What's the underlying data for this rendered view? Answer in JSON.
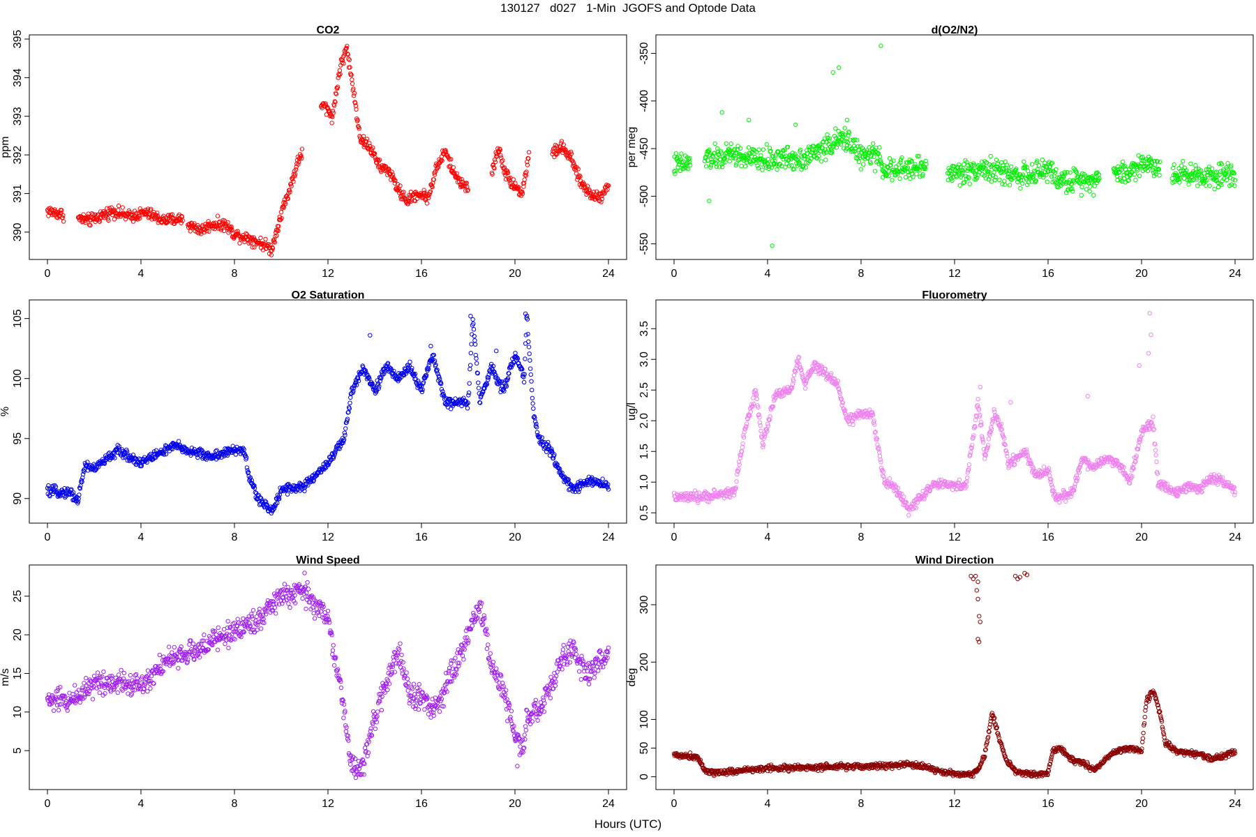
{
  "figure": {
    "title": "130127   d027   1-Min  JGOFS and Optode Data",
    "xlabel": "Hours (UTC)"
  },
  "chart_data": [
    {
      "type": "scatter",
      "title": "CO2",
      "ylabel": "ppm",
      "color": "#ff0000",
      "xlim": [
        0,
        24
      ],
      "ylim": [
        389.4,
        395.0
      ],
      "xticks": [
        0,
        4,
        8,
        12,
        16,
        20,
        24
      ],
      "yticks": [
        390,
        391,
        392,
        393,
        394,
        395
      ],
      "gaps": [
        [
          0.7,
          1.3
        ],
        [
          5.8,
          6.0
        ],
        [
          10.9,
          11.7
        ],
        [
          18.0,
          19.0
        ],
        [
          20.6,
          21.6
        ]
      ],
      "knots": [
        [
          0,
          390.55
        ],
        [
          0.7,
          390.45
        ],
        [
          1.3,
          390.35
        ],
        [
          1.8,
          390.3
        ],
        [
          2.8,
          390.55
        ],
        [
          3.5,
          390.4
        ],
        [
          4.2,
          390.5
        ],
        [
          5,
          390.3
        ],
        [
          5.8,
          390.35
        ],
        [
          6,
          390.2
        ],
        [
          6.6,
          390.05
        ],
        [
          7,
          390.2
        ],
        [
          7.6,
          390.2
        ],
        [
          8,
          389.95
        ],
        [
          8.6,
          389.85
        ],
        [
          9.2,
          389.7
        ],
        [
          9.6,
          389.55
        ],
        [
          10,
          390.5
        ],
        [
          10.3,
          391.0
        ],
        [
          10.7,
          391.8
        ],
        [
          11.8,
          393.3
        ],
        [
          12.2,
          393.0
        ],
        [
          12.5,
          394.2
        ],
        [
          12.8,
          394.8
        ],
        [
          13,
          394.0
        ],
        [
          13.4,
          392.4
        ],
        [
          13.8,
          392.2
        ],
        [
          14.2,
          391.7
        ],
        [
          14.6,
          391.6
        ],
        [
          15,
          391.1
        ],
        [
          15.4,
          390.8
        ],
        [
          15.8,
          391.0
        ],
        [
          16.3,
          390.9
        ],
        [
          16.6,
          391.6
        ],
        [
          17,
          392.1
        ],
        [
          17.4,
          391.5
        ],
        [
          17.7,
          391.3
        ],
        [
          18,
          391.1
        ],
        [
          19,
          391.5
        ],
        [
          19.3,
          392.2
        ],
        [
          19.6,
          391.5
        ],
        [
          20,
          391.2
        ],
        [
          20.3,
          391.0
        ],
        [
          20.6,
          392.0
        ],
        [
          21.6,
          392.05
        ],
        [
          22,
          392.2
        ],
        [
          22.4,
          391.9
        ],
        [
          22.8,
          391.3
        ],
        [
          23.2,
          391.0
        ],
        [
          23.6,
          390.9
        ],
        [
          24,
          391.2
        ]
      ],
      "noise": 0.15
    },
    {
      "type": "scatter",
      "title": "d(O2/N2)",
      "ylabel": "per meg",
      "color": "#00ee00",
      "xlim": [
        0,
        24
      ],
      "ylim": [
        -562,
        -335
      ],
      "xticks": [
        0,
        4,
        8,
        12,
        16,
        20,
        24
      ],
      "yticks": [
        -550,
        -500,
        -450,
        -400,
        -350
      ],
      "gaps": [
        [
          0.7,
          1.3
        ],
        [
          10.8,
          11.7
        ],
        [
          18.2,
          18.8
        ],
        [
          20.8,
          21.3
        ]
      ],
      "knots": [
        [
          0,
          -467
        ],
        [
          0.7,
          -466
        ],
        [
          1.3,
          -460
        ],
        [
          2,
          -460
        ],
        [
          2.5,
          -455
        ],
        [
          3,
          -460
        ],
        [
          4,
          -462
        ],
        [
          4.5,
          -460
        ],
        [
          5.5,
          -460
        ],
        [
          6,
          -455
        ],
        [
          6.5,
          -448
        ],
        [
          7,
          -442
        ],
        [
          7.5,
          -440
        ],
        [
          8,
          -460
        ],
        [
          8.5,
          -455
        ],
        [
          9,
          -470
        ],
        [
          9.5,
          -475
        ],
        [
          10,
          -470
        ],
        [
          10.8,
          -470
        ],
        [
          11.7,
          -475
        ],
        [
          12.5,
          -475
        ],
        [
          13,
          -470
        ],
        [
          14,
          -475
        ],
        [
          15,
          -478
        ],
        [
          15.5,
          -478
        ],
        [
          16,
          -470
        ],
        [
          16.5,
          -485
        ],
        [
          17.5,
          -482
        ],
        [
          18.2,
          -482
        ],
        [
          18.8,
          -475
        ],
        [
          19.5,
          -475
        ],
        [
          20,
          -465
        ],
        [
          20.8,
          -470
        ],
        [
          21.3,
          -475
        ],
        [
          22,
          -477
        ],
        [
          23,
          -478
        ],
        [
          24,
          -475
        ]
      ],
      "noise": 12,
      "extra_points": [
        [
          8.85,
          -342
        ],
        [
          7.05,
          -365
        ],
        [
          6.8,
          -370
        ],
        [
          4.2,
          -552
        ],
        [
          1.5,
          -505
        ],
        [
          2.05,
          -412
        ],
        [
          7.4,
          -420
        ],
        [
          5.2,
          -425
        ],
        [
          3.2,
          -420
        ]
      ]
    },
    {
      "type": "scatter",
      "title": "O2 Saturation",
      "ylabel": "%",
      "color": "#0000ee",
      "xlim": [
        0,
        24
      ],
      "ylim": [
        88.3,
        106.2
      ],
      "xticks": [
        0,
        4,
        8,
        12,
        16,
        20,
        24
      ],
      "yticks": [
        90,
        95,
        100,
        105
      ],
      "gaps": [],
      "knots": [
        [
          0,
          90.6
        ],
        [
          1,
          90.5
        ],
        [
          1.3,
          89.8
        ],
        [
          1.6,
          92.8
        ],
        [
          2,
          92.5
        ],
        [
          3,
          94
        ],
        [
          3.5,
          93.5
        ],
        [
          4,
          93
        ],
        [
          5,
          94
        ],
        [
          5.5,
          94.4
        ],
        [
          6,
          94
        ],
        [
          7,
          93.5
        ],
        [
          8,
          94
        ],
        [
          8.4,
          94.1
        ],
        [
          8.6,
          92
        ],
        [
          9,
          90
        ],
        [
          9.6,
          88.9
        ],
        [
          10,
          90.8
        ],
        [
          11,
          91
        ],
        [
          12,
          93
        ],
        [
          12.7,
          95
        ],
        [
          13,
          98.8
        ],
        [
          13.5,
          101
        ],
        [
          14,
          99
        ],
        [
          14.5,
          101
        ],
        [
          15,
          100
        ],
        [
          15.5,
          101
        ],
        [
          16,
          99
        ],
        [
          16.5,
          102
        ],
        [
          17,
          98
        ],
        [
          18,
          98
        ],
        [
          18.2,
          105
        ],
        [
          18.5,
          98
        ],
        [
          19,
          101
        ],
        [
          19.5,
          99
        ],
        [
          20,
          102
        ],
        [
          20.4,
          100
        ],
        [
          20.5,
          105.5
        ],
        [
          20.8,
          97
        ],
        [
          21,
          95
        ],
        [
          21.5,
          94
        ],
        [
          22,
          92
        ],
        [
          22.5,
          90.7
        ],
        [
          23,
          91.5
        ],
        [
          24,
          91.1
        ]
      ],
      "noise": 0.4,
      "extra_points": [
        [
          18.1,
          105.2
        ],
        [
          20.45,
          105.4
        ],
        [
          13.8,
          103.6
        ],
        [
          16.4,
          102.7
        ],
        [
          19.2,
          102.3
        ]
      ]
    },
    {
      "type": "scatter",
      "title": "Fluorometry",
      "ylabel": "ug/l",
      "color": "#ee82ee",
      "xlim": [
        0,
        24
      ],
      "ylim": [
        0.4,
        3.9
      ],
      "xticks": [
        0,
        4,
        8,
        12,
        16,
        20,
        24
      ],
      "yticks": [
        0.5,
        1.0,
        1.5,
        2.0,
        2.5,
        3.0,
        3.5
      ],
      "gaps": [],
      "knots": [
        [
          0,
          0.75
        ],
        [
          1,
          0.75
        ],
        [
          2,
          0.8
        ],
        [
          2.6,
          0.85
        ],
        [
          3,
          1.8
        ],
        [
          3.5,
          2.5
        ],
        [
          3.8,
          1.6
        ],
        [
          4.3,
          2.4
        ],
        [
          5,
          2.5
        ],
        [
          5.3,
          3.0
        ],
        [
          5.6,
          2.6
        ],
        [
          6,
          2.9
        ],
        [
          7,
          2.6
        ],
        [
          7.4,
          2.0
        ],
        [
          8,
          2.1
        ],
        [
          8.5,
          2.1
        ],
        [
          9,
          1.0
        ],
        [
          9.5,
          0.9
        ],
        [
          10,
          0.55
        ],
        [
          10.7,
          0.8
        ],
        [
          11,
          0.95
        ],
        [
          12.5,
          0.95
        ],
        [
          13,
          2.3
        ],
        [
          13.3,
          1.4
        ],
        [
          13.7,
          2.1
        ],
        [
          14,
          1.9
        ],
        [
          14.3,
          1.3
        ],
        [
          15,
          1.5
        ],
        [
          15.5,
          1.1
        ],
        [
          16,
          1.2
        ],
        [
          16.3,
          0.75
        ],
        [
          17,
          0.8
        ],
        [
          17.5,
          1.4
        ],
        [
          17.9,
          1.2
        ],
        [
          18.5,
          1.4
        ],
        [
          19,
          1.3
        ],
        [
          19.5,
          1.0
        ],
        [
          20,
          1.8
        ],
        [
          20.5,
          2.0
        ],
        [
          20.7,
          1.0
        ],
        [
          21.5,
          0.8
        ],
        [
          22,
          0.95
        ],
        [
          22.5,
          0.9
        ],
        [
          23,
          1.05
        ],
        [
          23.5,
          1.0
        ],
        [
          24,
          0.85
        ]
      ],
      "noise": 0.08,
      "extra_points": [
        [
          20.35,
          3.75
        ],
        [
          20.4,
          3.4
        ],
        [
          20.3,
          3.1
        ],
        [
          17.7,
          2.4
        ],
        [
          13.1,
          2.55
        ],
        [
          14.4,
          2.3
        ],
        [
          19.9,
          2.9
        ]
      ]
    },
    {
      "type": "scatter",
      "title": "Wind Speed",
      "ylabel": "m/s",
      "color": "#a020f0",
      "xlim": [
        0,
        24
      ],
      "ylim": [
        0.5,
        28.5
      ],
      "xticks": [
        0,
        4,
        8,
        12,
        16,
        20,
        24
      ],
      "yticks": [
        5,
        10,
        15,
        20,
        25
      ],
      "gaps": [],
      "knots": [
        [
          0,
          11.5
        ],
        [
          1,
          11.5
        ],
        [
          2,
          13.8
        ],
        [
          3,
          14
        ],
        [
          4,
          13.5
        ],
        [
          5,
          16.5
        ],
        [
          6,
          17.5
        ],
        [
          7,
          19
        ],
        [
          8,
          20.5
        ],
        [
          9,
          22
        ],
        [
          10,
          25
        ],
        [
          11,
          25.5
        ],
        [
          12,
          22
        ],
        [
          12.5,
          14
        ],
        [
          13,
          3
        ],
        [
          13.5,
          3
        ],
        [
          14,
          9
        ],
        [
          14.5,
          14
        ],
        [
          15,
          18
        ],
        [
          15.5,
          12
        ],
        [
          16,
          12
        ],
        [
          16.5,
          10
        ],
        [
          17,
          13
        ],
        [
          17.5,
          16
        ],
        [
          18,
          20
        ],
        [
          18.5,
          24
        ],
        [
          19,
          16
        ],
        [
          19.5,
          13
        ],
        [
          20,
          7
        ],
        [
          20.3,
          5
        ],
        [
          20.5,
          9
        ],
        [
          21,
          10
        ],
        [
          21.5,
          13
        ],
        [
          22,
          17
        ],
        [
          22.5,
          18
        ],
        [
          23,
          15
        ],
        [
          24,
          17.5
        ]
      ],
      "noise": 1.5,
      "extra_points": [
        [
          11,
          28
        ],
        [
          20.1,
          3
        ]
      ]
    },
    {
      "type": "scatter",
      "title": "Wind Direction",
      "ylabel": "deg",
      "color": "#8b0000",
      "xlim": [
        0,
        24
      ],
      "ylim": [
        -15,
        362
      ],
      "xticks": [
        0,
        4,
        8,
        12,
        16,
        20,
        24
      ],
      "yticks": [
        0,
        50,
        100,
        200,
        300
      ],
      "gaps": [],
      "knots": [
        [
          0,
          38
        ],
        [
          1,
          35
        ],
        [
          1.4,
          8
        ],
        [
          2,
          8
        ],
        [
          4,
          15
        ],
        [
          6,
          16
        ],
        [
          8,
          18
        ],
        [
          9.5,
          20
        ],
        [
          10,
          22
        ],
        [
          11,
          15
        ],
        [
          11.5,
          8
        ],
        [
          12,
          5
        ],
        [
          12.7,
          5
        ],
        [
          13,
          10
        ],
        [
          13.3,
          40
        ],
        [
          13.6,
          110
        ],
        [
          13.9,
          70
        ],
        [
          14.2,
          30
        ],
        [
          14.6,
          10
        ],
        [
          15,
          5
        ],
        [
          15.5,
          5
        ],
        [
          16,
          5
        ],
        [
          16.2,
          45
        ],
        [
          16.5,
          50
        ],
        [
          17,
          30
        ],
        [
          17.5,
          25
        ],
        [
          18,
          10
        ],
        [
          18.5,
          35
        ],
        [
          19,
          45
        ],
        [
          19.5,
          50
        ],
        [
          20,
          45
        ],
        [
          20.2,
          130
        ],
        [
          20.5,
          150
        ],
        [
          20.8,
          110
        ],
        [
          21,
          60
        ],
        [
          21.5,
          45
        ],
        [
          22,
          40
        ],
        [
          22.5,
          40
        ],
        [
          23,
          30
        ],
        [
          23.5,
          35
        ],
        [
          24,
          45
        ]
      ],
      "noise": 5,
      "extra_points": [
        [
          12.7,
          350
        ],
        [
          12.8,
          345
        ],
        [
          12.9,
          350
        ],
        [
          13,
          340
        ],
        [
          12.95,
          325
        ],
        [
          13.0,
          310
        ],
        [
          13.05,
          280
        ],
        [
          13.1,
          270
        ],
        [
          13.0,
          240
        ],
        [
          13.05,
          235
        ],
        [
          14.6,
          350
        ],
        [
          14.7,
          345
        ],
        [
          14.8,
          348
        ],
        [
          15.0,
          355
        ],
        [
          15.1,
          352
        ]
      ]
    }
  ]
}
